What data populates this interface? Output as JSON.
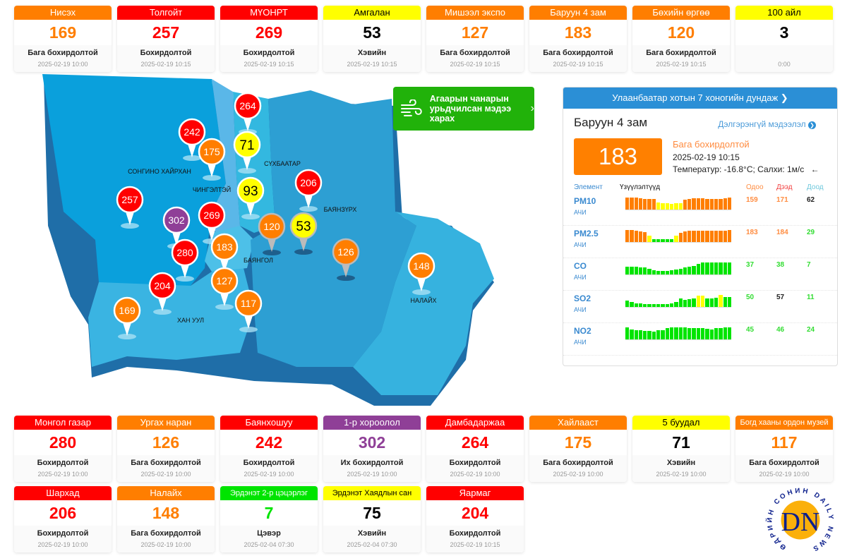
{
  "colors": {
    "green": "#00e400",
    "yellow": "#ffff00",
    "orange": "#ff7e00",
    "red": "#ff0000",
    "purple": "#8f3f97"
  },
  "top_cards": [
    {
      "name": "Нисэх",
      "value": "169",
      "status": "Бага бохирдолтой",
      "time": "2025-02-19 10:00",
      "level": "orange"
    },
    {
      "name": "Толгойт",
      "value": "257",
      "status": "Бохирдолтой",
      "time": "2025-02-19 10:15",
      "level": "red"
    },
    {
      "name": "МҮОНРТ",
      "value": "269",
      "status": "Бохирдолтой",
      "time": "2025-02-19 10:15",
      "level": "red"
    },
    {
      "name": "Амгалан",
      "value": "53",
      "status": "Хэвийн",
      "time": "2025-02-19 10:15",
      "level": "yellow"
    },
    {
      "name": "Мишээл экспо",
      "value": "127",
      "status": "Бага бохирдолтой",
      "time": "2025-02-19 10:15",
      "level": "orange"
    },
    {
      "name": "Баруун 4 зам",
      "value": "183",
      "status": "Бага бохирдолтой",
      "time": "2025-02-19 10:15",
      "level": "orange"
    },
    {
      "name": "Бөхийн өргөө",
      "value": "120",
      "status": "Бага бохирдолтой",
      "time": "2025-02-19 10:15",
      "level": "orange"
    },
    {
      "name": "100 айл",
      "value": "3",
      "status": "",
      "time": "0:00",
      "level": "yellow"
    }
  ],
  "bottom_cards": [
    {
      "name": "Монгол газар",
      "value": "280",
      "status": "Бохирдолтой",
      "time": "2025-02-19 10:00",
      "level": "red"
    },
    {
      "name": "Ургах наран",
      "value": "126",
      "status": "Бага бохирдолтой",
      "time": "2025-02-19 10:00",
      "level": "orange"
    },
    {
      "name": "Баянхошуу",
      "value": "242",
      "status": "Бохирдолтой",
      "time": "2025-02-19 10:00",
      "level": "red"
    },
    {
      "name": "1-р хороолол",
      "value": "302",
      "status": "Их бохирдолтой",
      "time": "2025-02-19 10:00",
      "level": "purple"
    },
    {
      "name": "Дамбадаржаа",
      "value": "264",
      "status": "Бохирдолтой",
      "time": "2025-02-19 10:00",
      "level": "red"
    },
    {
      "name": "Хайлааст",
      "value": "175",
      "status": "Бага бохирдолтой",
      "time": "2025-02-19 10:00",
      "level": "orange"
    },
    {
      "name": "5 буудал",
      "value": "71",
      "status": "Хэвийн",
      "time": "2025-02-19 10:00",
      "level": "yellow"
    },
    {
      "name": "Богд хааны ордон музей",
      "value": "117",
      "status": "Бага бохирдолтой",
      "time": "2025-02-19 10:00",
      "level": "orange"
    },
    {
      "name": "Шархад",
      "value": "206",
      "status": "Бохирдолтой",
      "time": "2025-02-19 10:00",
      "level": "red"
    },
    {
      "name": "Налайх",
      "value": "148",
      "status": "Бага бохирдолтой",
      "time": "2025-02-19 10:00",
      "level": "orange"
    },
    {
      "name": "Эрдэнэт 2-р цэцэрлэг",
      "value": "7",
      "status": "Цэвэр",
      "time": "2025-02-04 07:30",
      "level": "green"
    },
    {
      "name": "Эрдэнэт Хаядлын сан",
      "value": "75",
      "status": "Хэвийн",
      "time": "2025-02-04 07:30",
      "level": "yellow"
    },
    {
      "name": "Яармаг",
      "value": "204",
      "status": "Бохирдолтой",
      "time": "2025-02-19 10:15",
      "level": "red"
    }
  ],
  "map": {
    "districts": [
      "СОНГИНО ХАЙРХАН",
      "ЧИНГЭЛТЭЙ",
      "СҮХБААТАР",
      "БАЯНЗҮРХ",
      "БАЯНГОЛ",
      "ХАН УУЛ",
      "НАЛАЙХ"
    ],
    "markers": [
      {
        "value": "264",
        "level": "red"
      },
      {
        "value": "242",
        "level": "red"
      },
      {
        "value": "175",
        "level": "orange"
      },
      {
        "value": "71",
        "level": "yellow"
      },
      {
        "value": "206",
        "level": "red"
      },
      {
        "value": "257",
        "level": "red"
      },
      {
        "value": "93",
        "level": "yellow"
      },
      {
        "value": "302",
        "level": "purple"
      },
      {
        "value": "269",
        "level": "red"
      },
      {
        "value": "120",
        "level": "orange"
      },
      {
        "value": "53",
        "level": "yellow"
      },
      {
        "value": "280",
        "level": "red"
      },
      {
        "value": "183",
        "level": "orange"
      },
      {
        "value": "126",
        "level": "orange"
      },
      {
        "value": "148",
        "level": "orange"
      },
      {
        "value": "204",
        "level": "red"
      },
      {
        "value": "127",
        "level": "orange"
      },
      {
        "value": "117",
        "level": "orange"
      },
      {
        "value": "169",
        "level": "orange"
      }
    ]
  },
  "forecast_button": {
    "label": "Агаарын чанарын урьдчилсан мэдээ харах",
    "icon": "wind-icon"
  },
  "panel": {
    "header": "Улаанбаатар хотын 7 хоногийн дундаж",
    "station": "Баруун 4 зам",
    "details_link": "Дэлгэрэнгүй мэдээлэл",
    "aqi": "183",
    "status": "Бага бохирдолтой",
    "time": "2025-02-19 10:15",
    "weather": "Температур: -16.8°C; Салхи: 1м/с",
    "wind_arrow": "←",
    "columns": {
      "element": "Элемент",
      "measurements": "Үзүүлэлтүүд",
      "now": "Одоо",
      "max": "Дээд",
      "min": "Доод"
    },
    "rows": [
      {
        "el": "PM10",
        "unit": "АЧИ",
        "now": "159",
        "max": "171",
        "min": "62",
        "now_c": "#ff8c40",
        "max_c": "#ff8c40",
        "min_c": "#222",
        "bars": [
          165,
          168,
          166,
          160,
          150,
          145,
          145,
          95,
          90,
          85,
          80,
          85,
          92,
          140,
          150,
          155,
          155,
          155,
          150,
          150,
          150,
          150,
          155,
          165
        ]
      },
      {
        "el": "PM2.5",
        "unit": "АЧИ",
        "now": "183",
        "max": "184",
        "min": "29",
        "now_c": "#ff8c40",
        "max_c": "#ff8c40",
        "min_c": "#33dd33",
        "bars": [
          180,
          180,
          175,
          165,
          150,
          100,
          45,
          40,
          38,
          38,
          40,
          95,
          140,
          160,
          170,
          170,
          170,
          170,
          170,
          168,
          168,
          168,
          172,
          183
        ]
      },
      {
        "el": "CO",
        "unit": "АЧИ",
        "now": "37",
        "max": "38",
        "min": "7",
        "now_c": "#33dd33",
        "max_c": "#33dd33",
        "min_c": "#33dd33",
        "bars": [
          25,
          25,
          25,
          23,
          22,
          18,
          14,
          12,
          11,
          11,
          14,
          16,
          18,
          22,
          25,
          27,
          33,
          37,
          37,
          37,
          37,
          37,
          38,
          37
        ]
      },
      {
        "el": "SO2",
        "unit": "АЧИ",
        "now": "50",
        "max": "57",
        "min": "11",
        "now_c": "#33dd33",
        "max_c": "#222",
        "min_c": "#33dd33",
        "bars": [
          30,
          22,
          16,
          16,
          13,
          13,
          13,
          13,
          14,
          14,
          16,
          22,
          38,
          34,
          36,
          40,
          54,
          52,
          38,
          40,
          44,
          56,
          46,
          46
        ]
      },
      {
        "el": "NO2",
        "unit": "АЧИ",
        "now": "45",
        "max": "46",
        "min": "24",
        "now_c": "#33dd33",
        "max_c": "#33dd33",
        "min_c": "#33dd33",
        "bars": [
          45,
          38,
          35,
          35,
          32,
          33,
          30,
          35,
          35,
          42,
          45,
          45,
          45,
          45,
          43,
          42,
          42,
          42,
          40,
          38,
          43,
          43,
          45,
          45
        ]
      }
    ]
  },
  "logo": {
    "text": "DN",
    "ring_text": "ӨДРИЙН СОНИН DAILY NEWS"
  }
}
